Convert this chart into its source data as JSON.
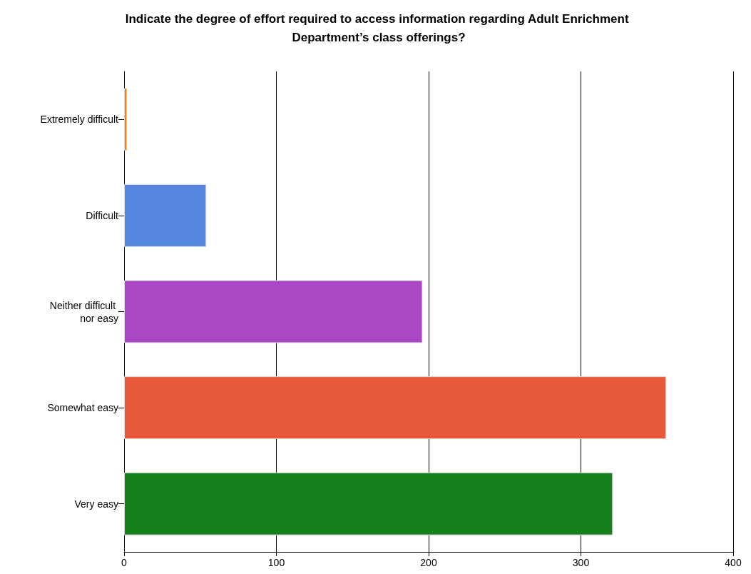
{
  "chart_data": {
    "type": "bar",
    "orientation": "horizontal",
    "title": "Indicate the degree of effort required to access information regarding Adult Enrichment Department’s class offerings?",
    "categories": [
      "Extremely difficult",
      "Difficult",
      "Neither difficult nor easy",
      "Somewhat easy",
      "Very easy"
    ],
    "values": [
      2,
      54,
      196,
      356,
      321
    ],
    "colors": [
      "#f08010",
      "#5585dc",
      "#aa48c4",
      "#e8583a",
      "#15801c"
    ],
    "xlim": [
      0,
      400
    ],
    "xticks": [
      0,
      100,
      200,
      300,
      400
    ],
    "grid": "x"
  }
}
